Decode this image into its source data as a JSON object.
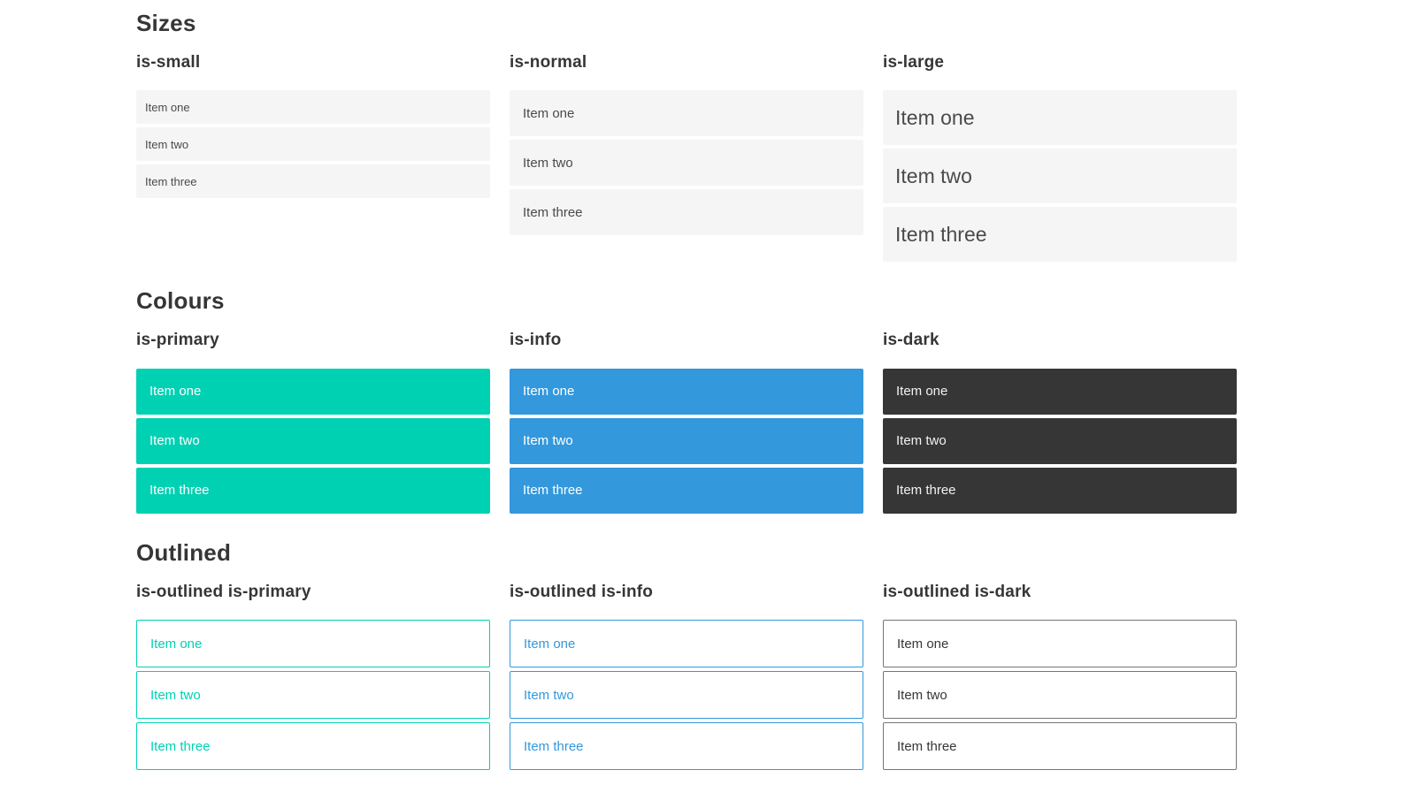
{
  "sections": [
    {
      "title": "Sizes",
      "groups": [
        {
          "label": "is-small",
          "items": [
            "Item one",
            "Item two",
            "Item three"
          ]
        },
        {
          "label": "is-normal",
          "items": [
            "Item one",
            "Item two",
            "Item three"
          ]
        },
        {
          "label": "is-large",
          "items": [
            "Item one",
            "Item two",
            "Item three"
          ]
        }
      ]
    },
    {
      "title": "Colours",
      "groups": [
        {
          "label": "is-primary",
          "items": [
            "Item one",
            "Item two",
            "Item three"
          ]
        },
        {
          "label": "is-info",
          "items": [
            "Item one",
            "Item two",
            "Item three"
          ]
        },
        {
          "label": "is-dark",
          "items": [
            "Item one",
            "Item two",
            "Item three"
          ]
        }
      ]
    },
    {
      "title": "Outlined",
      "groups": [
        {
          "label": "is-outlined is-primary",
          "items": [
            "Item one",
            "Item two",
            "Item three"
          ]
        },
        {
          "label": "is-outlined is-info",
          "items": [
            "Item one",
            "Item two",
            "Item three"
          ]
        },
        {
          "label": "is-outlined is-dark",
          "items": [
            "Item one",
            "Item two",
            "Item three"
          ]
        }
      ]
    }
  ],
  "colors": {
    "primary": "#00d1b2",
    "info": "#3398dc",
    "dark": "#363636",
    "heading": "#363636",
    "text": "#4a4a4a",
    "light_bg": "#f5f5f5",
    "outlined_dark_border": "#757575"
  }
}
